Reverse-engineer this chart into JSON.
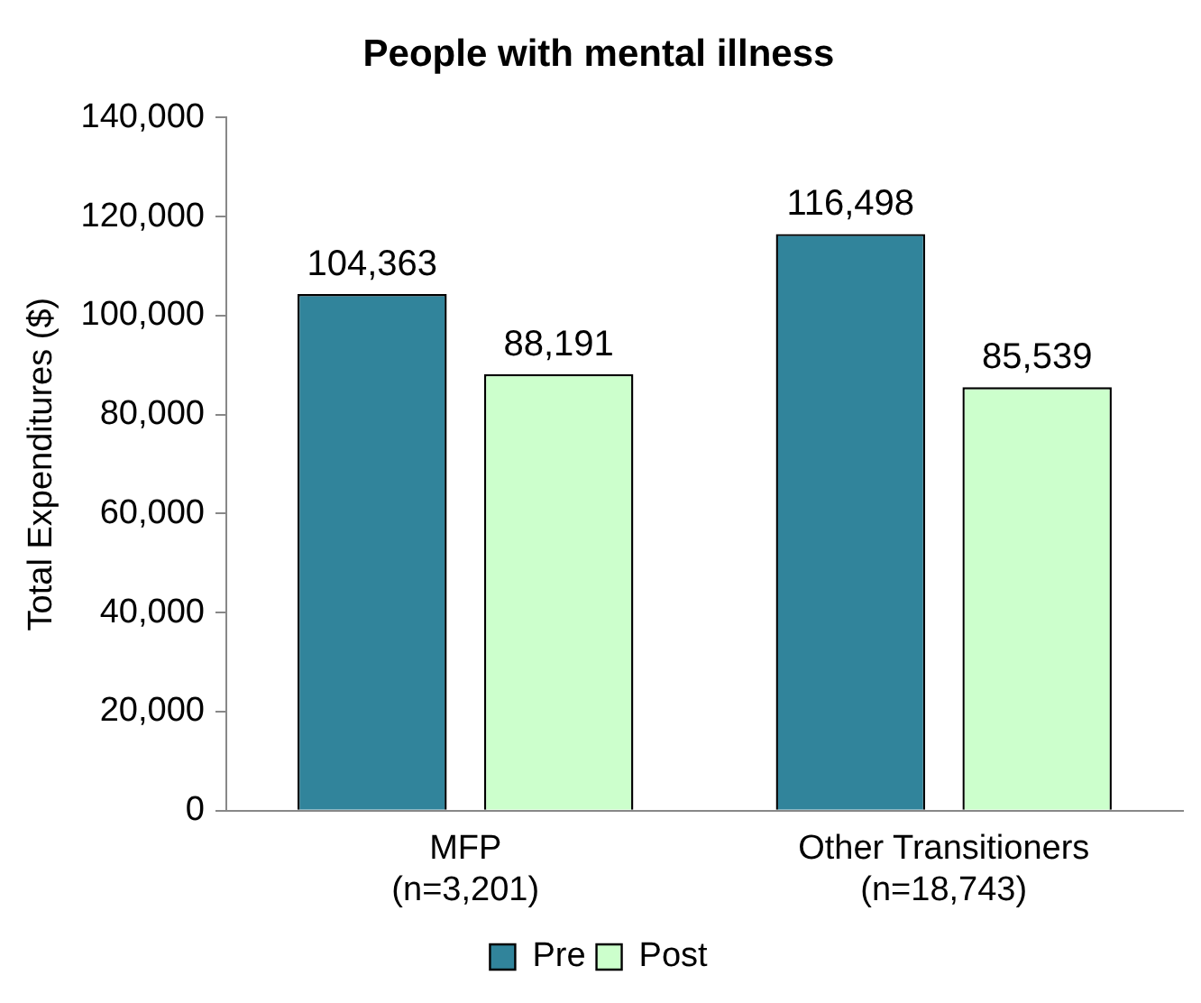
{
  "chart_data": {
    "type": "bar",
    "title": "People with mental illness",
    "ylabel": "Total Expenditures ($)",
    "categories": [
      "MFP\n(n=3,201)",
      "Other Transitioners\n(n=18,743)"
    ],
    "series": [
      {
        "name": "Pre",
        "color": "#31849b",
        "values": [
          104363,
          116498
        ],
        "value_labels": [
          "104,363",
          "116,498"
        ]
      },
      {
        "name": "Post",
        "color": "#ccffcc",
        "values": [
          88191,
          85539
        ],
        "value_labels": [
          "88,191",
          "85,539"
        ]
      }
    ],
    "ylim": [
      0,
      140000
    ],
    "yticks": [
      {
        "value": 0,
        "label": "0"
      },
      {
        "value": 20000,
        "label": "20,000"
      },
      {
        "value": 40000,
        "label": "40,000"
      },
      {
        "value": 60000,
        "label": "60,000"
      },
      {
        "value": 80000,
        "label": "80,000"
      },
      {
        "value": 100000,
        "label": "100,000"
      },
      {
        "value": 120000,
        "label": "120,000"
      },
      {
        "value": 140000,
        "label": "140,000"
      }
    ],
    "grid": false,
    "legend": "bottom"
  }
}
